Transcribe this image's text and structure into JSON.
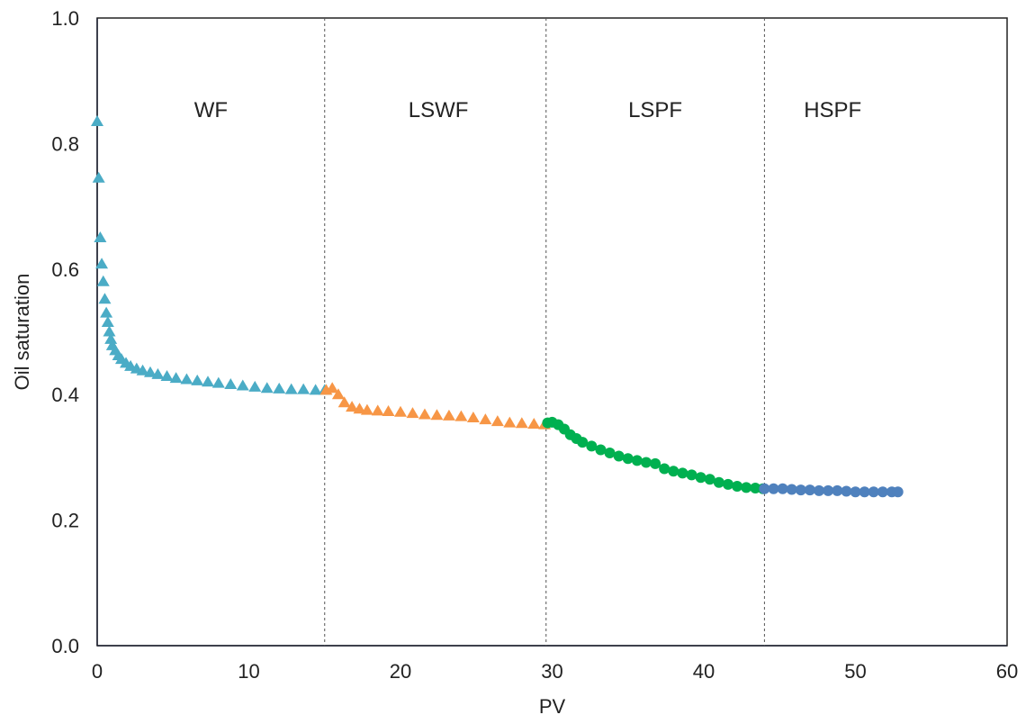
{
  "chart_data": {
    "type": "scatter",
    "title": "",
    "xlabel": "PV",
    "ylabel": "Oil saturation",
    "xlim": [
      0,
      60
    ],
    "ylim": [
      0,
      1.0
    ],
    "x_ticks": [
      0,
      10,
      20,
      30,
      40,
      50,
      60
    ],
    "y_ticks": [
      0.0,
      0.2,
      0.4,
      0.6,
      0.8,
      1.0
    ],
    "x_tick_labels": [
      "0",
      "10",
      "20",
      "30",
      "40",
      "50",
      "60"
    ],
    "y_tick_labels": [
      "0.0",
      "0.2",
      "0.4",
      "0.6",
      "0.8",
      "1.0"
    ],
    "grid": false,
    "legend": "none",
    "region_boundaries": [
      15.0,
      29.6,
      44.0
    ],
    "regions": [
      {
        "label": "WF",
        "x_center": 7.5
      },
      {
        "label": "LSWF",
        "x_center": 22.5
      },
      {
        "label": "LSPF",
        "x_center": 36.8
      },
      {
        "label": "HSPF",
        "x_center": 48.5
      }
    ],
    "series": [
      {
        "color": "#4bacc6",
        "marker": "triangle",
        "x": [
          0.0,
          0.1,
          0.2,
          0.3,
          0.4,
          0.5,
          0.6,
          0.7,
          0.8,
          0.9,
          1.0,
          1.2,
          1.4,
          1.6,
          1.9,
          2.2,
          2.6,
          3.0,
          3.5,
          4.0,
          4.6,
          5.2,
          5.9,
          6.6,
          7.3,
          8.0,
          8.8,
          9.6,
          10.4,
          11.2,
          12.0,
          12.8,
          13.6,
          14.4,
          15.0
        ],
        "y": [
          0.835,
          0.745,
          0.65,
          0.608,
          0.58,
          0.552,
          0.53,
          0.515,
          0.5,
          0.488,
          0.478,
          0.47,
          0.462,
          0.456,
          0.45,
          0.445,
          0.441,
          0.438,
          0.435,
          0.432,
          0.429,
          0.426,
          0.424,
          0.422,
          0.42,
          0.418,
          0.416,
          0.414,
          0.412,
          0.41,
          0.409,
          0.408,
          0.408,
          0.407,
          0.407
        ]
      },
      {
        "color": "#f79646",
        "marker": "triangle",
        "x": [
          15.1,
          15.5,
          15.9,
          16.3,
          16.8,
          17.3,
          17.8,
          18.5,
          19.2,
          20.0,
          20.8,
          21.6,
          22.4,
          23.2,
          24.0,
          24.8,
          25.6,
          26.4,
          27.2,
          28.0,
          28.8,
          29.5
        ],
        "y": [
          0.407,
          0.41,
          0.4,
          0.387,
          0.38,
          0.377,
          0.375,
          0.374,
          0.373,
          0.372,
          0.37,
          0.368,
          0.367,
          0.366,
          0.365,
          0.363,
          0.36,
          0.357,
          0.355,
          0.354,
          0.353,
          0.352
        ]
      },
      {
        "color": "#00b050",
        "marker": "circle",
        "x": [
          29.7,
          30.0,
          30.4,
          30.8,
          31.2,
          31.6,
          32.0,
          32.6,
          33.2,
          33.8,
          34.4,
          35.0,
          35.6,
          36.2,
          36.8,
          37.4,
          38.0,
          38.6,
          39.2,
          39.8,
          40.4,
          41.0,
          41.6,
          42.2,
          42.8,
          43.4,
          43.9
        ],
        "y": [
          0.355,
          0.356,
          0.352,
          0.345,
          0.336,
          0.33,
          0.324,
          0.318,
          0.312,
          0.307,
          0.302,
          0.298,
          0.295,
          0.292,
          0.29,
          0.282,
          0.278,
          0.275,
          0.272,
          0.268,
          0.265,
          0.26,
          0.257,
          0.254,
          0.252,
          0.251,
          0.25
        ]
      },
      {
        "color": "#4f81bd",
        "marker": "circle",
        "x": [
          44.0,
          44.6,
          45.2,
          45.8,
          46.4,
          47.0,
          47.6,
          48.2,
          48.8,
          49.4,
          50.0,
          50.6,
          51.2,
          51.8,
          52.4,
          52.8
        ],
        "y": [
          0.25,
          0.25,
          0.25,
          0.249,
          0.248,
          0.248,
          0.247,
          0.247,
          0.247,
          0.246,
          0.245,
          0.245,
          0.245,
          0.245,
          0.245,
          0.245
        ]
      }
    ]
  }
}
